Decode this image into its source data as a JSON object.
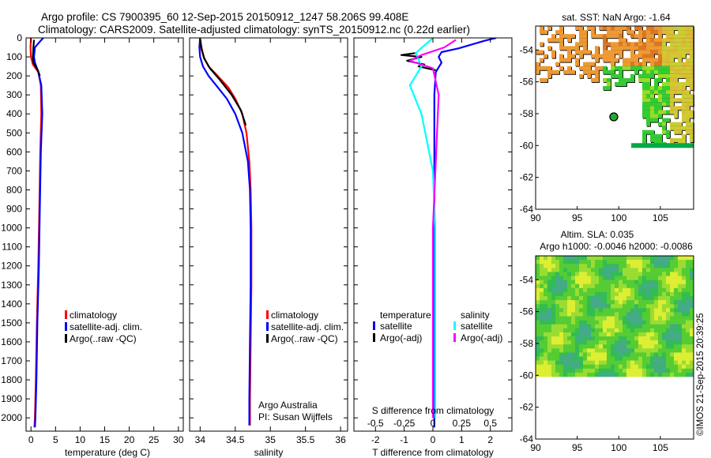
{
  "header": {
    "line1": "Argo profile: CS 7900395_60 12-Sep-2015 20150912_1247 58.206S 99.408E",
    "line2": "Climatology: CARS2009. Satellite-adjusted climatology: synTS_20150912.nc (0.22d earlier)"
  },
  "colors": {
    "climatology": "#ff0000",
    "satellite_clim": "#0000ff",
    "argo": "#000000",
    "sat_salinity": "#00ffff",
    "argo_adj_salinity": "#ff00ff"
  },
  "chart_data": [
    {
      "type": "line",
      "id": "temperature",
      "xlabel": "temperature (deg C)",
      "ylabel": "",
      "xlim": [
        -1,
        31
      ],
      "ylim": [
        2070,
        0
      ],
      "xticks": [
        "0",
        "5",
        "10",
        "15",
        "20",
        "25",
        "30"
      ],
      "yticks": [
        "0",
        "100",
        "200",
        "300",
        "400",
        "500",
        "600",
        "700",
        "800",
        "900",
        "1000",
        "1100",
        "1200",
        "1300",
        "1400",
        "1500",
        "1600",
        "1700",
        "1800",
        "1900",
        "2000"
      ],
      "legend": [
        "climatology",
        "satellite-adj. clim.",
        "Argo(..raw -QC)"
      ],
      "series": [
        {
          "name": "climatology",
          "color_key": "climatology",
          "points": [
            [
              0.0,
              0
            ],
            [
              -0.1,
              50
            ],
            [
              0.0,
              100
            ],
            [
              0.4,
              140
            ],
            [
              1.5,
              180
            ],
            [
              2.0,
              250
            ],
            [
              2.1,
              400
            ],
            [
              1.9,
              600
            ],
            [
              1.7,
              900
            ],
            [
              1.5,
              1200
            ],
            [
              1.2,
              1500
            ],
            [
              1.0,
              1800
            ],
            [
              0.8,
              2000
            ],
            [
              0.7,
              2050
            ]
          ]
        },
        {
          "name": "satellite-adj. clim.",
          "color_key": "satellite_clim",
          "points": [
            [
              2.5,
              0
            ],
            [
              1.8,
              20
            ],
            [
              0.8,
              50
            ],
            [
              0.6,
              100
            ],
            [
              0.8,
              130
            ],
            [
              1.5,
              180
            ],
            [
              2.1,
              250
            ],
            [
              2.3,
              400
            ],
            [
              2.0,
              600
            ],
            [
              1.8,
              900
            ],
            [
              1.6,
              1200
            ],
            [
              1.3,
              1500
            ],
            [
              1.1,
              1800
            ],
            [
              0.9,
              2000
            ],
            [
              0.8,
              2050
            ]
          ]
        },
        {
          "name": "Argo(..raw -QC)",
          "color_key": "argo",
          "points": [
            [
              0.6,
              10
            ],
            [
              0.5,
              50
            ],
            [
              0.4,
              100
            ],
            [
              0.5,
              130
            ],
            [
              1.4,
              170
            ],
            [
              1.8,
              200
            ]
          ]
        }
      ]
    },
    {
      "type": "line",
      "id": "salinity",
      "xlabel": "salinity",
      "ylabel": "",
      "xlim": [
        33.85,
        36.1
      ],
      "ylim": [
        2070,
        0
      ],
      "xticks": [
        "34",
        "34.5",
        "35",
        "35.5",
        "36"
      ],
      "legend": [
        "climatology",
        "satellite-adj. clim.",
        "Argo(..raw -QC)"
      ],
      "note": [
        "Argo Australia",
        "PI: Susan Wijffels"
      ],
      "series": [
        {
          "name": "climatology",
          "color_key": "climatology",
          "points": [
            [
              34.0,
              0
            ],
            [
              34.02,
              50
            ],
            [
              34.05,
              100
            ],
            [
              34.12,
              150
            ],
            [
              34.25,
              200
            ],
            [
              34.4,
              260
            ],
            [
              34.5,
              320
            ],
            [
              34.6,
              400
            ],
            [
              34.66,
              500
            ],
            [
              34.7,
              650
            ],
            [
              34.72,
              800
            ],
            [
              34.73,
              1000
            ],
            [
              34.73,
              1300
            ],
            [
              34.72,
              1600
            ],
            [
              34.71,
              1900
            ],
            [
              34.71,
              2040
            ]
          ]
        },
        {
          "name": "satellite-adj. clim.",
          "color_key": "satellite_clim",
          "points": [
            [
              34.0,
              0
            ],
            [
              33.99,
              50
            ],
            [
              34.0,
              100
            ],
            [
              34.04,
              150
            ],
            [
              34.12,
              200
            ],
            [
              34.25,
              260
            ],
            [
              34.38,
              320
            ],
            [
              34.5,
              400
            ],
            [
              34.6,
              500
            ],
            [
              34.68,
              650
            ],
            [
              34.71,
              800
            ],
            [
              34.72,
              1000
            ],
            [
              34.72,
              1300
            ],
            [
              34.71,
              1600
            ],
            [
              34.7,
              1900
            ],
            [
              34.7,
              2040
            ]
          ]
        },
        {
          "name": "Argo(..raw -QC)",
          "color_key": "argo",
          "points": [
            [
              34.0,
              10
            ],
            [
              34.02,
              60
            ],
            [
              34.06,
              110
            ],
            [
              34.14,
              160
            ],
            [
              34.28,
              220
            ],
            [
              34.45,
              300
            ],
            [
              34.58,
              380
            ],
            [
              34.65,
              460
            ]
          ]
        }
      ]
    },
    {
      "type": "line",
      "id": "difference",
      "xlabel": "T difference from climatology",
      "top_axis_label": "S difference from climatology",
      "xlim": [
        -2.75,
        2.75
      ],
      "ylim": [
        2070,
        0
      ],
      "xticks": [
        "-2",
        "-1",
        "0",
        "1",
        "2"
      ],
      "top_ticks": [
        "-0.5",
        "-0.25",
        "0",
        "0.25",
        "0.5"
      ],
      "legend_groups": [
        {
          "title": "temperature",
          "items": [
            "satellite",
            "Argo(-adj)"
          ]
        },
        {
          "title": "salinity",
          "items": [
            "satellite",
            "Argo(-adj)"
          ]
        }
      ],
      "series": [
        {
          "name": "temperature satellite",
          "color_key": "satellite_clim",
          "points": [
            [
              2.2,
              0
            ],
            [
              1.8,
              15
            ],
            [
              0.9,
              55
            ],
            [
              0.3,
              75
            ],
            [
              0.2,
              100
            ],
            [
              0.3,
              130
            ],
            [
              0.1,
              180
            ],
            [
              0.05,
              300
            ],
            [
              0.05,
              800
            ],
            [
              0.05,
              1500
            ],
            [
              0.05,
              2050
            ]
          ]
        },
        {
          "name": "temperature Argo(-adj)",
          "color_key": "argo",
          "points": [
            [
              -0.6,
              80
            ],
            [
              -1.1,
              90
            ],
            [
              -0.4,
              100
            ],
            [
              -0.9,
              120
            ],
            [
              -0.3,
              140
            ],
            [
              -0.5,
              150
            ],
            [
              0.1,
              170
            ]
          ]
        },
        {
          "name": "salinity satellite",
          "color_key": "sat_salinity",
          "points": [
            [
              0.0,
              0
            ],
            [
              -0.15,
              80
            ],
            [
              -0.1,
              150
            ],
            [
              -0.2,
              250
            ],
            [
              -0.1,
              400
            ],
            [
              0.0,
              700
            ],
            [
              0.02,
              1000
            ],
            [
              0.02,
              2000
            ]
          ]
        },
        {
          "name": "salinity Argo(-adj)",
          "color_key": "argo_adj_salinity",
          "points": [
            [
              0.2,
              10
            ],
            [
              0.1,
              50
            ],
            [
              -0.1,
              90
            ],
            [
              -0.2,
              120
            ],
            [
              0.0,
              160
            ],
            [
              0.05,
              300
            ],
            [
              0.0,
              1000
            ],
            [
              0.0,
              2000
            ]
          ]
        }
      ]
    },
    {
      "type": "heatmap",
      "id": "sst_map",
      "title": "sat. SST: NaN Argo: -1.64",
      "xlim": [
        90,
        109
      ],
      "ylim": [
        -64,
        -52.5
      ],
      "xticks": [
        "90",
        "95",
        "100",
        "105"
      ],
      "yticks": [
        "-54",
        "-56",
        "-58",
        "-60",
        "-62",
        "-64"
      ],
      "argo_position": [
        99.4,
        -58.2
      ]
    },
    {
      "type": "heatmap",
      "id": "sla_map",
      "title": "Altim. SLA: 0.035",
      "subtitle": "Argo h1000: -0.0046 h2000: -0.0086",
      "xlim": [
        90,
        109
      ],
      "ylim": [
        -64,
        -52.5
      ],
      "xticks": [
        "90",
        "95",
        "100",
        "105"
      ],
      "yticks": [
        "-54",
        "-56",
        "-58",
        "-60",
        "-62",
        "-64"
      ]
    }
  ],
  "footer": {
    "stamp": "©IMOS 21-Sep-2015 20:39:25"
  }
}
